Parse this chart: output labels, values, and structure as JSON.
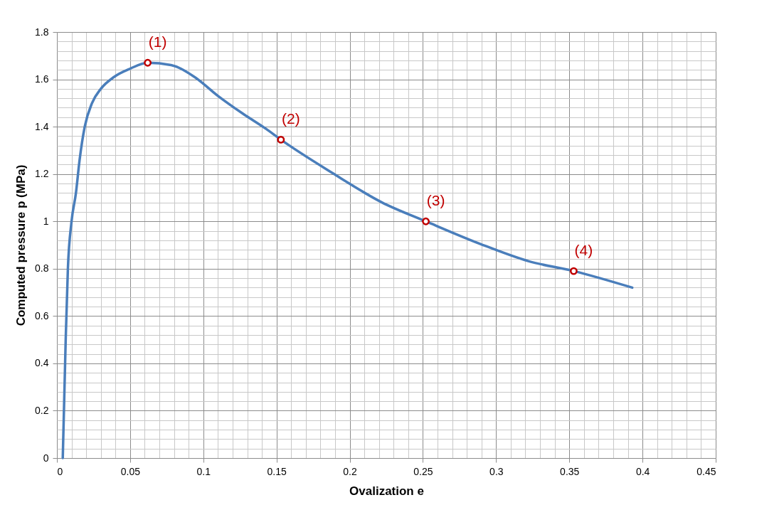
{
  "chart_data": {
    "type": "line",
    "xlabel": "Ovalization e",
    "ylabel": "Computed pressure p (MPa)",
    "xlim": [
      0,
      0.45
    ],
    "ylim": [
      0,
      1.8
    ],
    "xticks": [
      0,
      {
        "value": 0.01,
        "label": null
      },
      {
        "value": 0.02,
        "label": null
      },
      {
        "value": 0.03,
        "label": null
      },
      {
        "value": 0.04,
        "label": null
      },
      {
        "value": 0.05,
        "label": "0.05"
      },
      {
        "value": 0.06,
        "label": null
      },
      {
        "value": 0.07,
        "label": null
      },
      {
        "value": 0.08,
        "label": null
      },
      {
        "value": 0.09,
        "label": null
      },
      0.1,
      {
        "value": 0.11,
        "label": null
      },
      {
        "value": 0.12,
        "label": null
      },
      {
        "value": 0.13,
        "label": null
      },
      {
        "value": 0.14,
        "label": null
      },
      0.15,
      {
        "value": 0.16,
        "label": null
      },
      {
        "value": 0.17,
        "label": null
      },
      {
        "value": 0.18,
        "label": null
      },
      {
        "value": 0.19,
        "label": null
      },
      0.2,
      {
        "value": 0.21,
        "label": null
      },
      {
        "value": 0.22,
        "label": null
      },
      {
        "value": 0.23,
        "label": null
      },
      {
        "value": 0.24,
        "label": null
      },
      0.25,
      {
        "value": 0.26,
        "label": null
      },
      {
        "value": 0.27,
        "label": null
      },
      {
        "value": 0.28,
        "label": null
      },
      {
        "value": 0.29,
        "label": null
      },
      0.3,
      {
        "value": 0.31,
        "label": null
      },
      {
        "value": 0.32,
        "label": null
      },
      {
        "value": 0.33,
        "label": null
      },
      {
        "value": 0.34,
        "label": null
      },
      0.35,
      {
        "value": 0.36,
        "label": null
      },
      {
        "value": 0.37,
        "label": null
      },
      {
        "value": 0.38,
        "label": null
      },
      {
        "value": 0.39,
        "label": null
      },
      0.4,
      {
        "value": 0.41,
        "label": null
      },
      {
        "value": 0.42,
        "label": null
      },
      {
        "value": 0.43,
        "label": null
      },
      {
        "value": 0.44,
        "label": null
      },
      0.45
    ],
    "yticks": [
      0,
      {
        "value": 0.04,
        "label": null
      },
      {
        "value": 0.08,
        "label": null
      },
      {
        "value": 0.12,
        "label": null
      },
      {
        "value": 0.16,
        "label": null
      },
      0.2,
      {
        "value": 0.24,
        "label": null
      },
      {
        "value": 0.28,
        "label": null
      },
      {
        "value": 0.32,
        "label": null
      },
      {
        "value": 0.36,
        "label": null
      },
      0.4,
      {
        "value": 0.44,
        "label": null
      },
      {
        "value": 0.48,
        "label": null
      },
      {
        "value": 0.52,
        "label": null
      },
      {
        "value": 0.56,
        "label": null
      },
      0.6,
      {
        "value": 0.64,
        "label": null
      },
      {
        "value": 0.68,
        "label": null
      },
      {
        "value": 0.72,
        "label": null
      },
      {
        "value": 0.76,
        "label": null
      },
      0.8,
      {
        "value": 0.84,
        "label": null
      },
      {
        "value": 0.88,
        "label": null
      },
      {
        "value": 0.92,
        "label": null
      },
      {
        "value": 0.96,
        "label": null
      },
      1,
      {
        "value": 1.04,
        "label": null
      },
      {
        "value": 1.08,
        "label": null
      },
      {
        "value": 1.12,
        "label": null
      },
      {
        "value": 1.16,
        "label": null
      },
      1.2,
      {
        "value": 1.24,
        "label": null
      },
      {
        "value": 1.28,
        "label": null
      },
      {
        "value": 1.32,
        "label": null
      },
      {
        "value": 1.36,
        "label": null
      },
      1.4,
      {
        "value": 1.44,
        "label": null
      },
      {
        "value": 1.48,
        "label": null
      },
      {
        "value": 1.52,
        "label": null
      },
      {
        "value": 1.56,
        "label": null
      },
      1.6,
      {
        "value": 1.64,
        "label": null
      },
      {
        "value": 1.68,
        "label": null
      },
      {
        "value": 1.72,
        "label": null
      },
      {
        "value": 1.76,
        "label": null
      },
      1.8
    ],
    "grid": true,
    "series": [
      {
        "color": "#4a7ebb",
        "marker": "none",
        "line_style": "solid",
        "x": [
          0.004,
          0.006,
          0.0075,
          0.01,
          0.013,
          0.0155,
          0.019,
          0.024,
          0.03,
          0.039,
          0.05,
          0.062,
          0.078,
          0.094,
          0.11,
          0.127,
          0.143,
          0.153,
          0.188,
          0.222,
          0.252,
          0.289,
          0.322,
          0.353,
          0.393
        ],
        "values": [
          0,
          0.5,
          0.8,
          1.0,
          1.12,
          1.26,
          1.4,
          1.5,
          1.56,
          1.61,
          1.645,
          1.67,
          1.66,
          1.61,
          1.53,
          1.455,
          1.39,
          1.345,
          1.205,
          1.08,
          1.0,
          0.905,
          0.832,
          0.79,
          0.72
        ]
      },
      {
        "type": "scatter",
        "color": "#c00000",
        "marker": "circle",
        "x": [
          0.062,
          0.153,
          0.252,
          0.353
        ],
        "values": [
          1.67,
          1.345,
          1.0,
          0.79
        ]
      }
    ],
    "annotations": [
      {
        "text": "(1)",
        "x": 0.062,
        "y": 1.67
      },
      {
        "text": "(2)",
        "x": 0.153,
        "y": 1.345
      },
      {
        "text": "(3)",
        "x": 0.252,
        "y": 1.0
      },
      {
        "text": "(4)",
        "x": 0.353,
        "y": 0.79
      }
    ]
  }
}
